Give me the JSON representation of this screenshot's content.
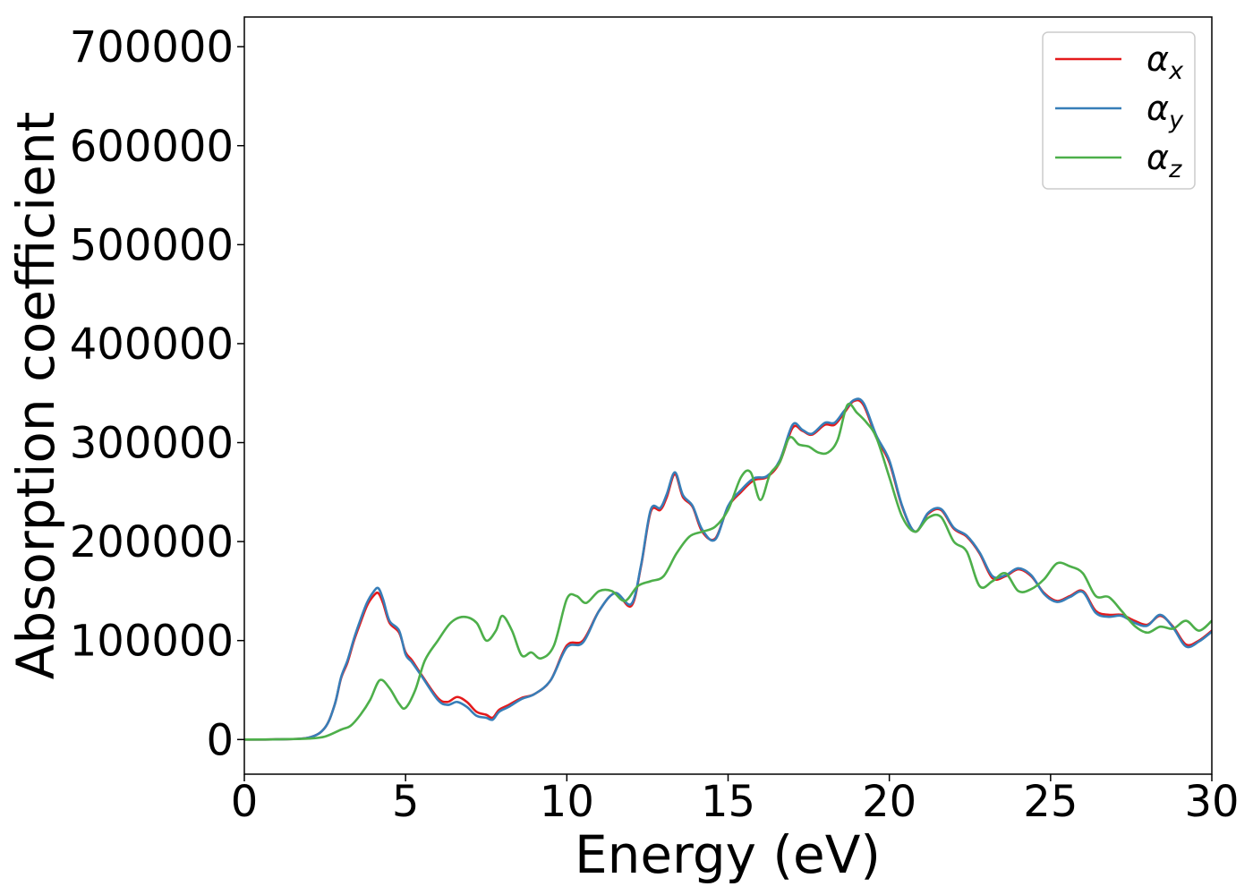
{
  "chart_data": {
    "type": "line",
    "xlabel": "Energy (eV)",
    "ylabel": "Absorption coefficient",
    "xlim": [
      0,
      30
    ],
    "ylim": [
      -35000,
      730000
    ],
    "xticks": [
      0,
      5,
      10,
      15,
      20,
      25,
      30
    ],
    "xtick_labels": [
      "0",
      "5",
      "10",
      "15",
      "20",
      "25",
      "30"
    ],
    "yticks": [
      0,
      100000,
      200000,
      300000,
      400000,
      500000,
      600000,
      700000
    ],
    "ytick_labels": [
      "0",
      "100000",
      "200000",
      "300000",
      "400000",
      "500000",
      "600000",
      "700000"
    ],
    "grid": false,
    "legend_position": "top-right",
    "series": [
      {
        "name": "α",
        "subscript": "x",
        "color": "#e41a1c",
        "x": [
          0,
          1,
          2,
          2.5,
          2.8,
          3,
          3.2,
          3.4,
          3.6,
          3.8,
          4,
          4.15,
          4.3,
          4.5,
          4.8,
          5,
          5.2,
          5.5,
          6,
          6.3,
          6.6,
          6.9,
          7.2,
          7.5,
          7.7,
          7.9,
          8.2,
          8.6,
          9,
          9.5,
          10,
          10.5,
          11,
          11.5,
          12,
          12.3,
          12.6,
          12.9,
          13.1,
          13.35,
          13.6,
          13.9,
          14.2,
          14.6,
          15,
          15.4,
          15.8,
          16.2,
          16.6,
          17,
          17.3,
          17.6,
          18,
          18.3,
          18.6,
          18.9,
          19.2,
          19.6,
          20,
          20.4,
          20.8,
          21.2,
          21.6,
          22,
          22.4,
          22.8,
          23.2,
          23.6,
          24,
          24.4,
          24.8,
          25.2,
          25.6,
          26,
          26.4,
          26.8,
          27.2,
          27.6,
          28,
          28.4,
          28.8,
          29.2,
          29.6,
          30
        ],
        "y": [
          0,
          200,
          2000,
          12000,
          35000,
          62000,
          78000,
          100000,
          118000,
          135000,
          145000,
          148000,
          138000,
          118000,
          108000,
          88000,
          80000,
          65000,
          42000,
          38000,
          43000,
          38000,
          28000,
          25000,
          22000,
          30000,
          35000,
          42000,
          46000,
          60000,
          95000,
          100000,
          130000,
          148000,
          135000,
          175000,
          230000,
          232000,
          245000,
          268000,
          245000,
          235000,
          210000,
          203000,
          235000,
          250000,
          262000,
          265000,
          280000,
          315000,
          312000,
          308000,
          318000,
          318000,
          330000,
          342000,
          338000,
          305000,
          280000,
          235000,
          210000,
          228000,
          232000,
          213000,
          205000,
          188000,
          163000,
          165000,
          172000,
          165000,
          148000,
          140000,
          145000,
          150000,
          130000,
          126000,
          126000,
          120000,
          116000,
          125000,
          114000,
          96000,
          100000,
          110000
        ]
      },
      {
        "name": "α",
        "subscript": "y",
        "color": "#377eb8",
        "x": [
          0,
          1,
          2,
          2.5,
          2.8,
          3,
          3.2,
          3.4,
          3.6,
          3.8,
          4,
          4.15,
          4.3,
          4.5,
          4.8,
          5,
          5.2,
          5.5,
          6,
          6.3,
          6.6,
          6.9,
          7.2,
          7.5,
          7.7,
          7.9,
          8.2,
          8.6,
          9,
          9.5,
          10,
          10.5,
          11,
          11.5,
          12,
          12.3,
          12.6,
          12.9,
          13.1,
          13.35,
          13.6,
          13.9,
          14.2,
          14.6,
          15,
          15.4,
          15.8,
          16.2,
          16.6,
          17,
          17.3,
          17.6,
          18,
          18.3,
          18.6,
          18.9,
          19.2,
          19.6,
          20,
          20.4,
          20.8,
          21.2,
          21.6,
          22,
          22.4,
          22.8,
          23.2,
          23.6,
          24,
          24.4,
          24.8,
          25.2,
          25.6,
          26,
          26.4,
          26.8,
          27.2,
          27.6,
          28,
          28.4,
          28.8,
          29.2,
          29.6,
          30
        ],
        "y": [
          0,
          200,
          2000,
          12000,
          35000,
          63000,
          80000,
          102000,
          121000,
          138000,
          149000,
          153000,
          142000,
          120000,
          110000,
          86000,
          78000,
          64000,
          40000,
          35000,
          38000,
          33000,
          24000,
          22000,
          20000,
          28000,
          33000,
          41000,
          46000,
          60000,
          93000,
          98000,
          130000,
          148000,
          137000,
          176000,
          232000,
          234000,
          248000,
          270000,
          247000,
          236000,
          212000,
          202000,
          236000,
          252000,
          264000,
          266000,
          282000,
          318000,
          313000,
          309000,
          320000,
          320000,
          332000,
          343000,
          340000,
          307000,
          282000,
          236000,
          210000,
          229000,
          233000,
          214000,
          206000,
          189000,
          165000,
          166000,
          173000,
          166000,
          147000,
          139000,
          144000,
          149000,
          128000,
          124000,
          125000,
          118000,
          115000,
          126000,
          113000,
          94000,
          99000,
          109000
        ]
      },
      {
        "name": "α",
        "subscript": "z",
        "color": "#4daf4a",
        "x": [
          0,
          1,
          2,
          2.5,
          3,
          3.3,
          3.6,
          3.9,
          4.2,
          4.5,
          4.8,
          5,
          5.3,
          5.6,
          6,
          6.4,
          6.8,
          7.2,
          7.5,
          7.8,
          8,
          8.3,
          8.6,
          8.9,
          9.2,
          9.6,
          10,
          10.3,
          10.6,
          11,
          11.4,
          11.8,
          12.2,
          12.6,
          13,
          13.4,
          13.8,
          14.2,
          14.6,
          15,
          15.4,
          15.7,
          16,
          16.3,
          16.6,
          16.9,
          17.2,
          17.5,
          17.8,
          18.1,
          18.4,
          18.7,
          19,
          19.3,
          19.6,
          20,
          20.4,
          20.8,
          21.2,
          21.6,
          22,
          22.4,
          22.8,
          23.2,
          23.6,
          24,
          24.4,
          24.8,
          25.2,
          25.6,
          26,
          26.4,
          26.8,
          27.2,
          27.6,
          28,
          28.4,
          28.8,
          29.2,
          29.6,
          30
        ],
        "y": [
          0,
          200,
          1000,
          3000,
          10000,
          14000,
          25000,
          40000,
          60000,
          52000,
          36000,
          32000,
          50000,
          80000,
          100000,
          118000,
          124000,
          118000,
          100000,
          110000,
          125000,
          110000,
          85000,
          88000,
          82000,
          95000,
          142000,
          145000,
          138000,
          150000,
          150000,
          140000,
          155000,
          160000,
          165000,
          188000,
          205000,
          210000,
          215000,
          232000,
          265000,
          270000,
          242000,
          268000,
          280000,
          305000,
          298000,
          296000,
          290000,
          290000,
          303000,
          338000,
          330000,
          320000,
          305000,
          265000,
          225000,
          210000,
          224000,
          225000,
          200000,
          190000,
          155000,
          160000,
          168000,
          150000,
          152000,
          162000,
          178000,
          175000,
          168000,
          145000,
          144000,
          130000,
          115000,
          108000,
          114000,
          112000,
          120000,
          110000,
          120000
        ]
      }
    ]
  }
}
